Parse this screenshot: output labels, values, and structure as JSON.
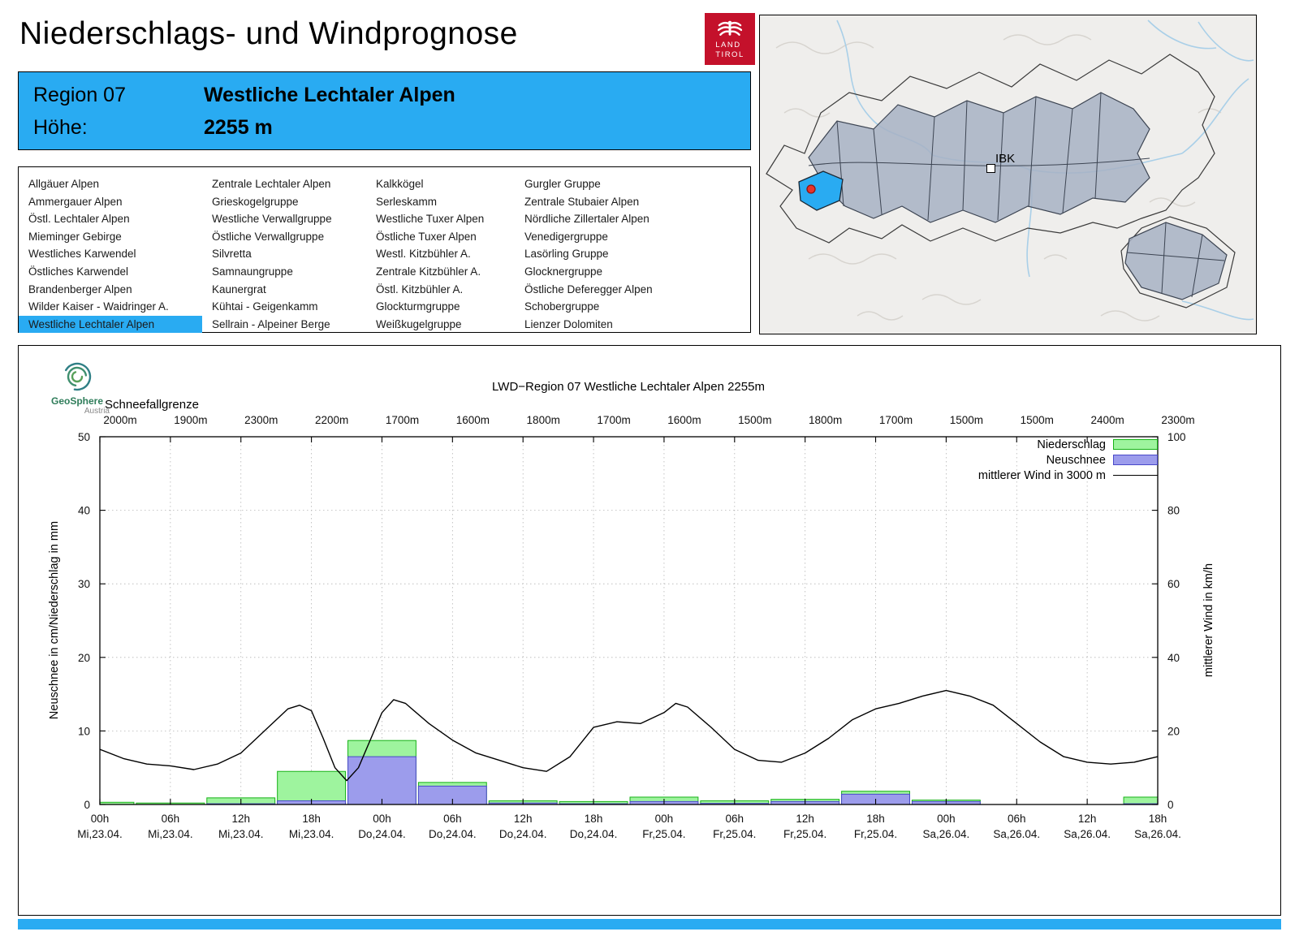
{
  "colors": {
    "accent_blue": "#29abf2",
    "precip_fill": "#9ef49e",
    "precip_border": "#16b216",
    "snow_fill": "#9c9cec",
    "snow_border": "#4949c9",
    "wind_line": "#000000",
    "map_region_fill": "#a7b1c4",
    "logo_red": "#c4112b"
  },
  "header": {
    "title": "Niederschlags- und Windprognose",
    "logo_line1": "LAND",
    "logo_line2": "TIROL"
  },
  "region_info": {
    "region_label": "Region 07",
    "region_name": "Westliche Lechtaler Alpen",
    "hoehe_label": "Höhe:",
    "hoehe_value": "2255 m"
  },
  "region_list": {
    "selected": "Westliche Lechtaler Alpen",
    "columns": [
      [
        "Allgäuer Alpen",
        "Ammergauer Alpen",
        "Östl. Lechtaler Alpen",
        "Mieminger Gebirge",
        "Westliches Karwendel",
        "Östliches Karwendel",
        "Brandenberger Alpen",
        "Wilder Kaiser - Waidringer A.",
        "Westliche Lechtaler Alpen"
      ],
      [
        "Zentrale Lechtaler Alpen",
        "Grieskogelgruppe",
        "Westliche Verwallgruppe",
        "Östliche Verwallgruppe",
        "Silvretta",
        "Samnaungruppe",
        "Kaunergrat",
        "Kühtai - Geigenkamm",
        "Sellrain - Alpeiner Berge"
      ],
      [
        "Kalkkögel",
        "Serleskamm",
        "Westliche Tuxer Alpen",
        "Östliche Tuxer Alpen",
        "Westl. Kitzbühler A.",
        "Zentrale Kitzbühler A.",
        "Östl. Kitzbühler A.",
        "Glockturmgruppe",
        "Weißkugelgruppe"
      ],
      [
        "Gurgler Gruppe",
        "Zentrale Stubaier Alpen",
        "Nördliche Zillertaler Alpen",
        "Venedigergruppe",
        "Lasörling Gruppe",
        "Glocknergruppe",
        "Östliche Deferegger Alpen",
        "Schobergruppe",
        "Lienzer Dolomiten"
      ]
    ]
  },
  "map": {
    "marker_label": "IBK"
  },
  "geosphere": {
    "line1": "GeoSphere",
    "line2": "Austria"
  },
  "chart_data": {
    "type": "bar",
    "title": "LWD−Region 07 Westliche Lechtaler Alpen 2255m",
    "snowline_label": "Schneefallgrenze",
    "snowline_values": [
      "2000m",
      "1900m",
      "2300m",
      "2200m",
      "1700m",
      "1600m",
      "1800m",
      "1700m",
      "1600m",
      "1500m",
      "1800m",
      "1700m",
      "1500m",
      "1500m",
      "2400m",
      "2300m"
    ],
    "ylabel_left": "Neuschnee in cm/Niederschlag in mm",
    "ylabel_right": "mittlerer Wind in km/h",
    "ylim_left": [
      0,
      50
    ],
    "ylim_right": [
      0,
      100
    ],
    "yticks_left": [
      0,
      10,
      20,
      30,
      40,
      50
    ],
    "yticks_right": [
      0,
      20,
      40,
      60,
      80,
      100
    ],
    "grid": "dotted",
    "legend_position": "top-right",
    "legend": [
      {
        "label": "Niederschlag",
        "color": "#9ef49e"
      },
      {
        "label": "Neuschnee",
        "color": "#9c9cec"
      },
      {
        "label": "mittlerer Wind in 3000 m",
        "color": "#000000"
      }
    ],
    "x_ticks": [
      {
        "hour": "00h",
        "date": "Mi,23.04."
      },
      {
        "hour": "06h",
        "date": "Mi,23.04."
      },
      {
        "hour": "12h",
        "date": "Mi,23.04."
      },
      {
        "hour": "18h",
        "date": "Mi,23.04."
      },
      {
        "hour": "00h",
        "date": "Do,24.04."
      },
      {
        "hour": "06h",
        "date": "Do,24.04."
      },
      {
        "hour": "12h",
        "date": "Do,24.04."
      },
      {
        "hour": "18h",
        "date": "Do,24.04."
      },
      {
        "hour": "00h",
        "date": "Fr,25.04."
      },
      {
        "hour": "06h",
        "date": "Fr,25.04."
      },
      {
        "hour": "12h",
        "date": "Fr,25.04."
      },
      {
        "hour": "18h",
        "date": "Fr,25.04."
      },
      {
        "hour": "00h",
        "date": "Sa,26.04."
      },
      {
        "hour": "06h",
        "date": "Sa,26.04."
      },
      {
        "hour": "12h",
        "date": "Sa,26.04."
      },
      {
        "hour": "18h",
        "date": "Sa,26.04."
      }
    ],
    "series": {
      "niederschlag_mm": [
        0.3,
        0.2,
        0.9,
        4.5,
        8.7,
        3.0,
        0.5,
        0.4,
        1.0,
        0.5,
        0.7,
        1.8,
        0.6,
        0,
        0,
        1.0
      ],
      "neuschnee_cm": [
        0,
        0,
        0.1,
        0.5,
        6.5,
        2.5,
        0.2,
        0.1,
        0.4,
        0.15,
        0.4,
        1.4,
        0.4,
        0,
        0,
        0.1
      ],
      "wind_kmh": {
        "x_hours": [
          0,
          2,
          4,
          6,
          8,
          10,
          12,
          14,
          16,
          17,
          18,
          19,
          20,
          21,
          22,
          24,
          25,
          26,
          28,
          30,
          32,
          34,
          36,
          38,
          40,
          42,
          44,
          46,
          48,
          49,
          50,
          52,
          54,
          56,
          58,
          60,
          62,
          64,
          66,
          68,
          70,
          72,
          74,
          76,
          78,
          80,
          82,
          84,
          86,
          88,
          90
        ],
        "values": [
          15,
          12.5,
          11,
          10.5,
          9.5,
          11,
          14,
          20,
          26,
          27,
          25.5,
          18,
          10,
          6.5,
          10,
          25,
          28.5,
          27.5,
          22,
          17.5,
          14,
          12,
          10,
          9,
          13,
          21,
          22.5,
          22,
          25,
          27.5,
          26.5,
          21,
          15,
          12,
          11.5,
          14,
          18,
          23,
          26,
          27.5,
          29.5,
          31,
          29.5,
          27,
          22,
          17,
          13,
          11.5,
          11,
          11.5,
          13
        ]
      }
    }
  }
}
